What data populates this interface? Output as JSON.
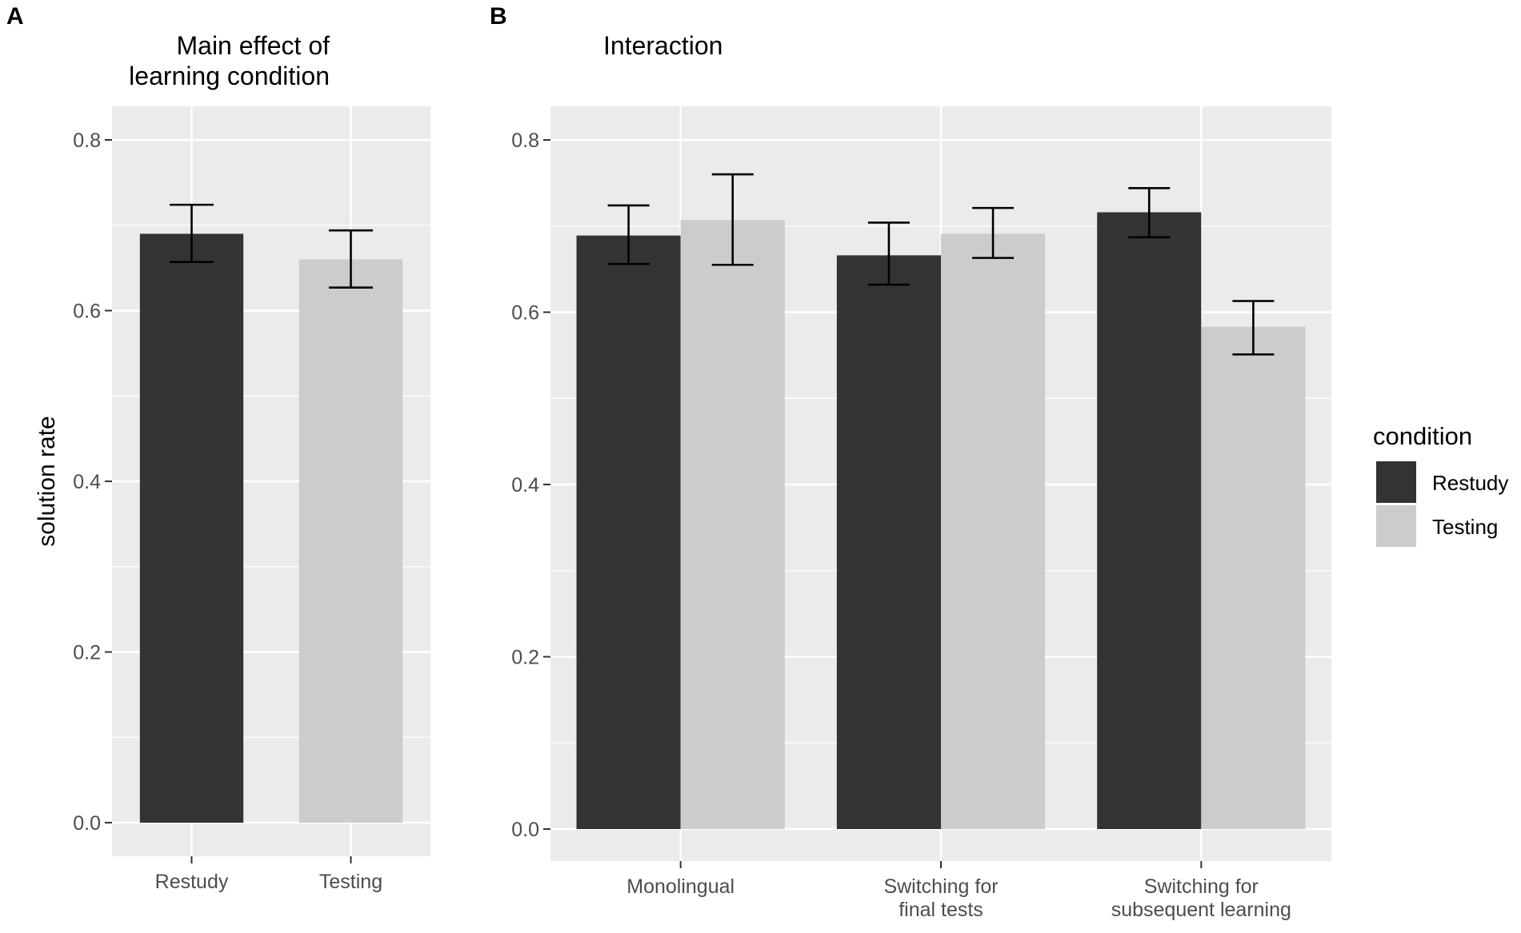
{
  "chart_data": [
    {
      "panel_label": "A",
      "type": "bar",
      "title": [
        "Main effect of",
        "learning condition"
      ],
      "xlabel": "",
      "ylabel": "solution rate",
      "ylim": [
        0,
        0.8
      ],
      "yticks": [
        "0.0",
        "0.2",
        "0.4",
        "0.6",
        "0.8"
      ],
      "categories": [
        "Restudy",
        "Testing"
      ],
      "values": [
        0.69,
        0.66
      ],
      "error_low": [
        0.657,
        0.627
      ],
      "error_high": [
        0.724,
        0.694
      ],
      "bar_colors": [
        "#333333",
        "#cccccc"
      ]
    },
    {
      "panel_label": "B",
      "type": "bar",
      "title": [
        "Interaction"
      ],
      "xlabel": "",
      "ylabel": "",
      "ylim": [
        0,
        0.8
      ],
      "yticks": [
        "0.0",
        "0.2",
        "0.4",
        "0.6",
        "0.8"
      ],
      "categories": [
        [
          "Monolingual"
        ],
        [
          "Switching for",
          "final tests"
        ],
        [
          "Switching for",
          "subsequent learning"
        ]
      ],
      "series": [
        {
          "name": "Restudy",
          "color": "#333333",
          "values": [
            0.689,
            0.666,
            0.716
          ],
          "error_low": [
            0.656,
            0.632,
            0.687
          ],
          "error_high": [
            0.724,
            0.704,
            0.744
          ]
        },
        {
          "name": "Testing",
          "color": "#cccccc",
          "values": [
            0.707,
            0.691,
            0.583
          ],
          "error_low": [
            0.655,
            0.663,
            0.551
          ],
          "error_high": [
            0.76,
            0.721,
            0.613
          ]
        }
      ]
    }
  ],
  "legend": {
    "title": "condition",
    "items": [
      {
        "label": "Restudy",
        "color": "#333333"
      },
      {
        "label": "Testing",
        "color": "#cccccc"
      }
    ]
  }
}
